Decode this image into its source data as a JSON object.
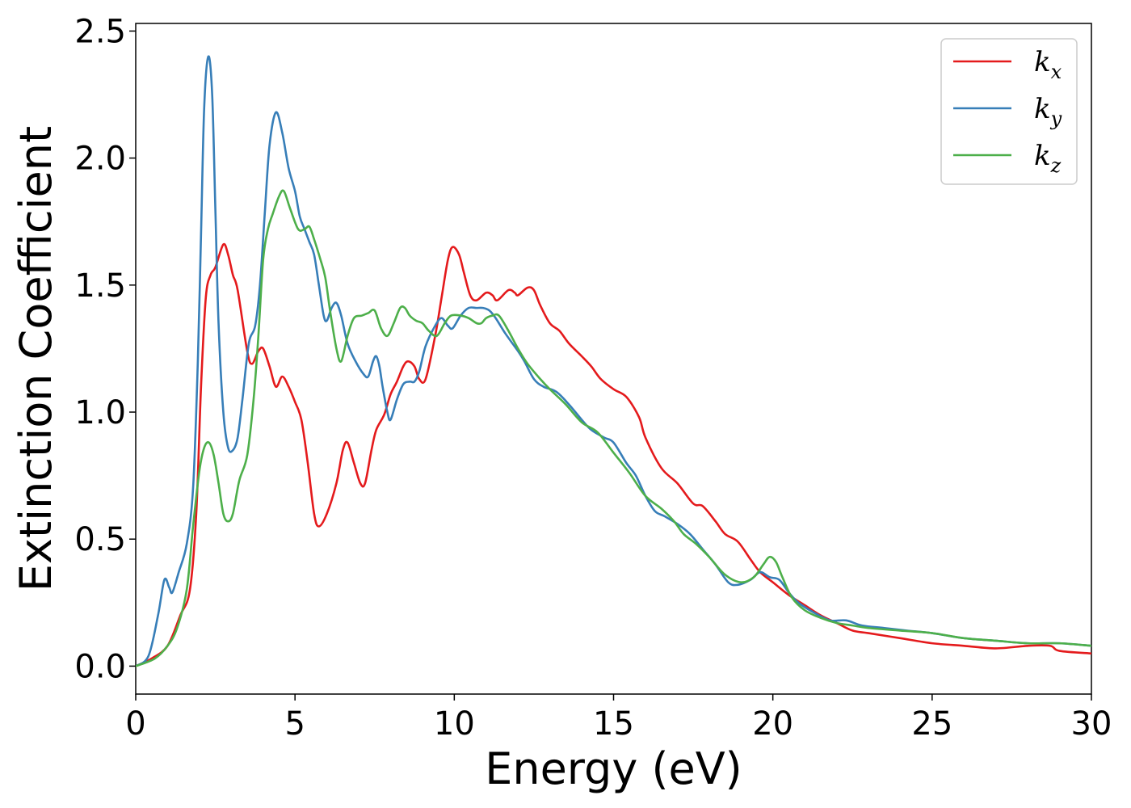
{
  "chart_data": {
    "type": "line",
    "title": "",
    "xlabel": "Energy (eV)",
    "ylabel": "Extinction Coefficient",
    "xlim": [
      0,
      30
    ],
    "ylim": [
      -0.11,
      2.53
    ],
    "xticks": [
      0,
      5,
      10,
      15,
      20,
      25,
      30
    ],
    "xtick_labels": [
      "0",
      "5",
      "10",
      "15",
      "20",
      "25",
      "30"
    ],
    "yticks": [
      0.0,
      0.5,
      1.0,
      1.5,
      2.0,
      2.5
    ],
    "ytick_labels": [
      "0.0",
      "0.5",
      "1.0",
      "1.5",
      "2.0",
      "2.5"
    ],
    "grid": false,
    "legend_position": "top-right",
    "series": [
      {
        "name": "k",
        "name_sub": "x",
        "color": "#e41a1c",
        "points": [
          [
            0,
            0
          ],
          [
            0.5,
            0.03
          ],
          [
            1.0,
            0.08
          ],
          [
            1.4,
            0.2
          ],
          [
            1.7,
            0.3
          ],
          [
            1.9,
            0.6
          ],
          [
            2.05,
            1.1
          ],
          [
            2.2,
            1.45
          ],
          [
            2.35,
            1.54
          ],
          [
            2.5,
            1.57
          ],
          [
            2.75,
            1.66
          ],
          [
            2.9,
            1.62
          ],
          [
            3.05,
            1.54
          ],
          [
            3.2,
            1.48
          ],
          [
            3.5,
            1.24
          ],
          [
            3.65,
            1.19
          ],
          [
            3.85,
            1.24
          ],
          [
            4.0,
            1.25
          ],
          [
            4.2,
            1.18
          ],
          [
            4.4,
            1.1
          ],
          [
            4.6,
            1.14
          ],
          [
            4.8,
            1.1
          ],
          [
            5.0,
            1.04
          ],
          [
            5.2,
            0.97
          ],
          [
            5.4,
            0.8
          ],
          [
            5.6,
            0.6
          ],
          [
            5.75,
            0.55
          ],
          [
            6.0,
            0.6
          ],
          [
            6.3,
            0.72
          ],
          [
            6.5,
            0.85
          ],
          [
            6.65,
            0.88
          ],
          [
            6.85,
            0.8
          ],
          [
            7.05,
            0.72
          ],
          [
            7.2,
            0.72
          ],
          [
            7.4,
            0.85
          ],
          [
            7.55,
            0.93
          ],
          [
            7.8,
            0.99
          ],
          [
            8.0,
            1.07
          ],
          [
            8.2,
            1.12
          ],
          [
            8.4,
            1.18
          ],
          [
            8.55,
            1.2
          ],
          [
            8.75,
            1.18
          ],
          [
            8.9,
            1.13
          ],
          [
            9.1,
            1.13
          ],
          [
            9.4,
            1.3
          ],
          [
            9.6,
            1.45
          ],
          [
            9.8,
            1.6
          ],
          [
            9.95,
            1.65
          ],
          [
            10.15,
            1.62
          ],
          [
            10.3,
            1.55
          ],
          [
            10.5,
            1.46
          ],
          [
            10.7,
            1.44
          ],
          [
            11.0,
            1.47
          ],
          [
            11.2,
            1.46
          ],
          [
            11.35,
            1.44
          ],
          [
            11.7,
            1.48
          ],
          [
            11.9,
            1.47
          ],
          [
            12.0,
            1.46
          ],
          [
            12.3,
            1.49
          ],
          [
            12.5,
            1.48
          ],
          [
            12.7,
            1.42
          ],
          [
            13.0,
            1.35
          ],
          [
            13.3,
            1.32
          ],
          [
            13.6,
            1.27
          ],
          [
            14.0,
            1.22
          ],
          [
            14.3,
            1.18
          ],
          [
            14.6,
            1.13
          ],
          [
            15.0,
            1.09
          ],
          [
            15.4,
            1.06
          ],
          [
            15.8,
            0.98
          ],
          [
            16.0,
            0.9
          ],
          [
            16.5,
            0.78
          ],
          [
            17.0,
            0.72
          ],
          [
            17.5,
            0.64
          ],
          [
            17.8,
            0.63
          ],
          [
            18.2,
            0.57
          ],
          [
            18.5,
            0.52
          ],
          [
            18.9,
            0.49
          ],
          [
            19.3,
            0.42
          ],
          [
            19.6,
            0.37
          ],
          [
            20.0,
            0.33
          ],
          [
            20.5,
            0.28
          ],
          [
            21.0,
            0.24
          ],
          [
            21.5,
            0.2
          ],
          [
            22.0,
            0.17
          ],
          [
            22.5,
            0.14
          ],
          [
            23.0,
            0.13
          ],
          [
            24.0,
            0.11
          ],
          [
            25.0,
            0.09
          ],
          [
            26.0,
            0.08
          ],
          [
            27.0,
            0.07
          ],
          [
            28.0,
            0.08
          ],
          [
            28.7,
            0.08
          ],
          [
            29.0,
            0.06
          ],
          [
            30.0,
            0.05
          ]
        ]
      },
      {
        "name": "k",
        "name_sub": "y",
        "color": "#377eb8",
        "points": [
          [
            0,
            0
          ],
          [
            0.4,
            0.04
          ],
          [
            0.7,
            0.2
          ],
          [
            0.9,
            0.34
          ],
          [
            1.05,
            0.31
          ],
          [
            1.15,
            0.29
          ],
          [
            1.35,
            0.37
          ],
          [
            1.6,
            0.48
          ],
          [
            1.8,
            0.7
          ],
          [
            1.95,
            1.2
          ],
          [
            2.05,
            1.7
          ],
          [
            2.15,
            2.2
          ],
          [
            2.28,
            2.4
          ],
          [
            2.4,
            2.25
          ],
          [
            2.5,
            1.8
          ],
          [
            2.6,
            1.35
          ],
          [
            2.75,
            1.0
          ],
          [
            2.9,
            0.86
          ],
          [
            3.05,
            0.85
          ],
          [
            3.2,
            0.9
          ],
          [
            3.35,
            1.05
          ],
          [
            3.55,
            1.27
          ],
          [
            3.75,
            1.34
          ],
          [
            3.9,
            1.5
          ],
          [
            4.05,
            1.78
          ],
          [
            4.2,
            2.05
          ],
          [
            4.4,
            2.18
          ],
          [
            4.6,
            2.1
          ],
          [
            4.8,
            1.96
          ],
          [
            5.0,
            1.87
          ],
          [
            5.15,
            1.77
          ],
          [
            5.3,
            1.72
          ],
          [
            5.45,
            1.67
          ],
          [
            5.6,
            1.62
          ],
          [
            5.75,
            1.5
          ],
          [
            5.9,
            1.38
          ],
          [
            6.0,
            1.36
          ],
          [
            6.15,
            1.41
          ],
          [
            6.3,
            1.43
          ],
          [
            6.45,
            1.38
          ],
          [
            6.65,
            1.27
          ],
          [
            6.9,
            1.2
          ],
          [
            7.15,
            1.15
          ],
          [
            7.3,
            1.14
          ],
          [
            7.45,
            1.2
          ],
          [
            7.55,
            1.22
          ],
          [
            7.65,
            1.18
          ],
          [
            7.75,
            1.1
          ],
          [
            7.9,
            1.0
          ],
          [
            8.0,
            0.97
          ],
          [
            8.2,
            1.05
          ],
          [
            8.4,
            1.11
          ],
          [
            8.6,
            1.12
          ],
          [
            8.75,
            1.12
          ],
          [
            8.9,
            1.16
          ],
          [
            9.1,
            1.26
          ],
          [
            9.4,
            1.34
          ],
          [
            9.6,
            1.37
          ],
          [
            9.8,
            1.34
          ],
          [
            9.95,
            1.33
          ],
          [
            10.2,
            1.38
          ],
          [
            10.45,
            1.41
          ],
          [
            10.7,
            1.41
          ],
          [
            10.9,
            1.41
          ],
          [
            11.1,
            1.4
          ],
          [
            11.3,
            1.37
          ],
          [
            11.6,
            1.31
          ],
          [
            12.0,
            1.24
          ],
          [
            12.2,
            1.2
          ],
          [
            12.5,
            1.13
          ],
          [
            12.8,
            1.1
          ],
          [
            13.2,
            1.08
          ],
          [
            13.6,
            1.03
          ],
          [
            14.0,
            0.97
          ],
          [
            14.3,
            0.93
          ],
          [
            14.7,
            0.9
          ],
          [
            15.0,
            0.88
          ],
          [
            15.4,
            0.8
          ],
          [
            15.7,
            0.75
          ],
          [
            16.0,
            0.67
          ],
          [
            16.3,
            0.61
          ],
          [
            16.6,
            0.59
          ],
          [
            17.0,
            0.56
          ],
          [
            17.4,
            0.52
          ],
          [
            17.8,
            0.46
          ],
          [
            18.2,
            0.4
          ],
          [
            18.6,
            0.33
          ],
          [
            18.9,
            0.32
          ],
          [
            19.3,
            0.34
          ],
          [
            19.6,
            0.37
          ],
          [
            19.9,
            0.35
          ],
          [
            20.2,
            0.34
          ],
          [
            20.5,
            0.29
          ],
          [
            20.8,
            0.25
          ],
          [
            21.3,
            0.21
          ],
          [
            21.8,
            0.18
          ],
          [
            22.3,
            0.18
          ],
          [
            22.8,
            0.16
          ],
          [
            23.5,
            0.15
          ],
          [
            24.2,
            0.14
          ],
          [
            25.0,
            0.13
          ],
          [
            26.0,
            0.11
          ],
          [
            27.0,
            0.1
          ],
          [
            28.0,
            0.09
          ],
          [
            29.0,
            0.09
          ],
          [
            30.0,
            0.08
          ]
        ]
      },
      {
        "name": "k",
        "name_sub": "z",
        "color": "#4daf4a",
        "points": [
          [
            0,
            0
          ],
          [
            0.6,
            0.03
          ],
          [
            1.0,
            0.08
          ],
          [
            1.3,
            0.15
          ],
          [
            1.6,
            0.3
          ],
          [
            1.8,
            0.55
          ],
          [
            2.0,
            0.77
          ],
          [
            2.15,
            0.86
          ],
          [
            2.3,
            0.88
          ],
          [
            2.45,
            0.83
          ],
          [
            2.6,
            0.72
          ],
          [
            2.75,
            0.6
          ],
          [
            2.9,
            0.57
          ],
          [
            3.05,
            0.6
          ],
          [
            3.25,
            0.73
          ],
          [
            3.5,
            0.83
          ],
          [
            3.7,
            1.05
          ],
          [
            3.85,
            1.3
          ],
          [
            4.0,
            1.6
          ],
          [
            4.15,
            1.72
          ],
          [
            4.3,
            1.78
          ],
          [
            4.5,
            1.85
          ],
          [
            4.65,
            1.87
          ],
          [
            4.85,
            1.8
          ],
          [
            5.1,
            1.72
          ],
          [
            5.3,
            1.72
          ],
          [
            5.45,
            1.73
          ],
          [
            5.6,
            1.68
          ],
          [
            5.8,
            1.6
          ],
          [
            5.95,
            1.53
          ],
          [
            6.1,
            1.4
          ],
          [
            6.3,
            1.25
          ],
          [
            6.45,
            1.2
          ],
          [
            6.65,
            1.3
          ],
          [
            6.85,
            1.37
          ],
          [
            7.1,
            1.38
          ],
          [
            7.3,
            1.39
          ],
          [
            7.5,
            1.4
          ],
          [
            7.7,
            1.33
          ],
          [
            7.9,
            1.3
          ],
          [
            8.1,
            1.35
          ],
          [
            8.3,
            1.41
          ],
          [
            8.45,
            1.41
          ],
          [
            8.6,
            1.38
          ],
          [
            8.8,
            1.36
          ],
          [
            9.0,
            1.35
          ],
          [
            9.2,
            1.32
          ],
          [
            9.45,
            1.3
          ],
          [
            9.7,
            1.35
          ],
          [
            9.9,
            1.38
          ],
          [
            10.2,
            1.38
          ],
          [
            10.45,
            1.37
          ],
          [
            10.7,
            1.35
          ],
          [
            10.85,
            1.35
          ],
          [
            11.0,
            1.37
          ],
          [
            11.2,
            1.38
          ],
          [
            11.4,
            1.38
          ],
          [
            11.7,
            1.32
          ],
          [
            12.0,
            1.25
          ],
          [
            12.3,
            1.19
          ],
          [
            12.7,
            1.13
          ],
          [
            13.0,
            1.09
          ],
          [
            13.5,
            1.03
          ],
          [
            14.0,
            0.96
          ],
          [
            14.5,
            0.92
          ],
          [
            15.0,
            0.84
          ],
          [
            15.5,
            0.76
          ],
          [
            16.0,
            0.67
          ],
          [
            16.5,
            0.62
          ],
          [
            16.9,
            0.57
          ],
          [
            17.2,
            0.52
          ],
          [
            17.6,
            0.48
          ],
          [
            18.0,
            0.43
          ],
          [
            18.5,
            0.36
          ],
          [
            19.0,
            0.33
          ],
          [
            19.4,
            0.35
          ],
          [
            19.7,
            0.4
          ],
          [
            19.9,
            0.43
          ],
          [
            20.1,
            0.41
          ],
          [
            20.3,
            0.35
          ],
          [
            20.6,
            0.27
          ],
          [
            21.0,
            0.22
          ],
          [
            21.5,
            0.19
          ],
          [
            22.0,
            0.17
          ],
          [
            22.5,
            0.16
          ],
          [
            23.0,
            0.15
          ],
          [
            24.0,
            0.14
          ],
          [
            25.0,
            0.13
          ],
          [
            26.0,
            0.11
          ],
          [
            27.0,
            0.1
          ],
          [
            28.0,
            0.09
          ],
          [
            29.0,
            0.09
          ],
          [
            30.0,
            0.08
          ]
        ]
      }
    ]
  }
}
